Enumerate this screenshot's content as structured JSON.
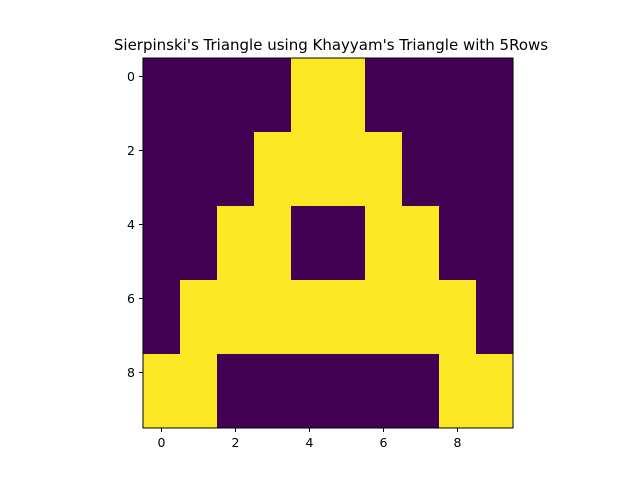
{
  "chart_data": {
    "type": "heatmap",
    "title": "Sierpinski's Triangle using Khayyam's Triangle with 5Rows",
    "xlabel": "",
    "ylabel": "",
    "xlim": [
      -0.5,
      9.5
    ],
    "ylim": [
      9.5,
      -0.5
    ],
    "x_ticks": [
      0,
      2,
      4,
      6,
      8
    ],
    "y_ticks": [
      0,
      2,
      4,
      6,
      8
    ],
    "grid": false,
    "colors": {
      "low": "#440154",
      "high": "#fde725"
    },
    "matrix": [
      [
        0,
        0,
        0,
        0,
        1,
        1,
        0,
        0,
        0,
        0
      ],
      [
        0,
        0,
        0,
        0,
        1,
        1,
        0,
        0,
        0,
        0
      ],
      [
        0,
        0,
        0,
        1,
        1,
        1,
        1,
        0,
        0,
        0
      ],
      [
        0,
        0,
        0,
        1,
        1,
        1,
        1,
        0,
        0,
        0
      ],
      [
        0,
        0,
        1,
        1,
        0,
        0,
        1,
        1,
        0,
        0
      ],
      [
        0,
        0,
        1,
        1,
        0,
        0,
        1,
        1,
        0,
        0
      ],
      [
        0,
        1,
        1,
        1,
        1,
        1,
        1,
        1,
        1,
        0
      ],
      [
        0,
        1,
        1,
        1,
        1,
        1,
        1,
        1,
        1,
        0
      ],
      [
        1,
        1,
        0,
        0,
        0,
        0,
        0,
        0,
        1,
        1
      ],
      [
        1,
        1,
        0,
        0,
        0,
        0,
        0,
        0,
        1,
        1
      ]
    ]
  }
}
